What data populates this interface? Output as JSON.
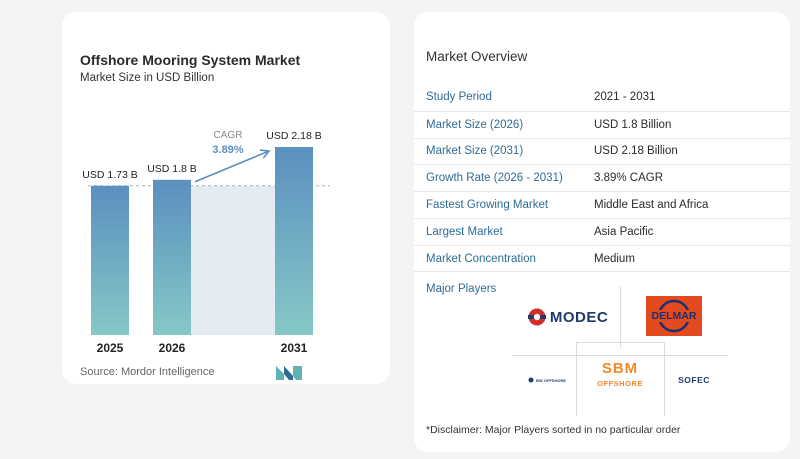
{
  "chart": {
    "title": "Offshore Mooring System Market",
    "subtitle": "Market Size in USD Billion",
    "source": "Source: Mordor Intelligence",
    "cagr_label": "CAGR",
    "cagr_value": "3.89%"
  },
  "chart_data": {
    "type": "bar",
    "categories": [
      "2025",
      "2026",
      "2031"
    ],
    "values": [
      1.73,
      1.8,
      2.18
    ],
    "data_labels": [
      "USD 1.73 B",
      "USD 1.8 B",
      "USD 2.18 B"
    ],
    "title": "Offshore Mooring System Market",
    "subtitle": "Market Size in USD Billion",
    "xlabel": "",
    "ylabel": "",
    "ylim": [
      0,
      2.18
    ],
    "grid": false,
    "colors": {
      "bar_top": "#5b8fbf",
      "bar_bottom": "#86c8c6",
      "band": "#e4ecf3",
      "arrow": "#5b8fbf",
      "cagr": "#5b8fbf"
    }
  },
  "overview": {
    "title": "Market Overview",
    "rows": [
      {
        "label": "Study Period",
        "value": "2021 - 2031"
      },
      {
        "label": "Market Size (2026)",
        "value": "USD 1.8 Billion"
      },
      {
        "label": "Market Size (2031)",
        "value": "USD 2.18 Billion"
      },
      {
        "label": "Growth Rate (2026 - 2031)",
        "value": "3.89% CAGR"
      },
      {
        "label": "Fastest Growing Market",
        "value": "Middle East and Africa"
      },
      {
        "label": "Largest Market",
        "value": "Asia Pacific"
      },
      {
        "label": "Market Concentration",
        "value": "Medium"
      }
    ],
    "players_title": "Major Players",
    "players": {
      "modec": "MODEC",
      "delmar": "DELMAR",
      "sbm_top": "SBM",
      "sbm_bottom": "OFFSHORE",
      "bw": "BW OFFSHORE",
      "sofec": "SOFEC"
    },
    "disclaimer": "*Disclaimer: Major Players sorted in no particular order"
  }
}
